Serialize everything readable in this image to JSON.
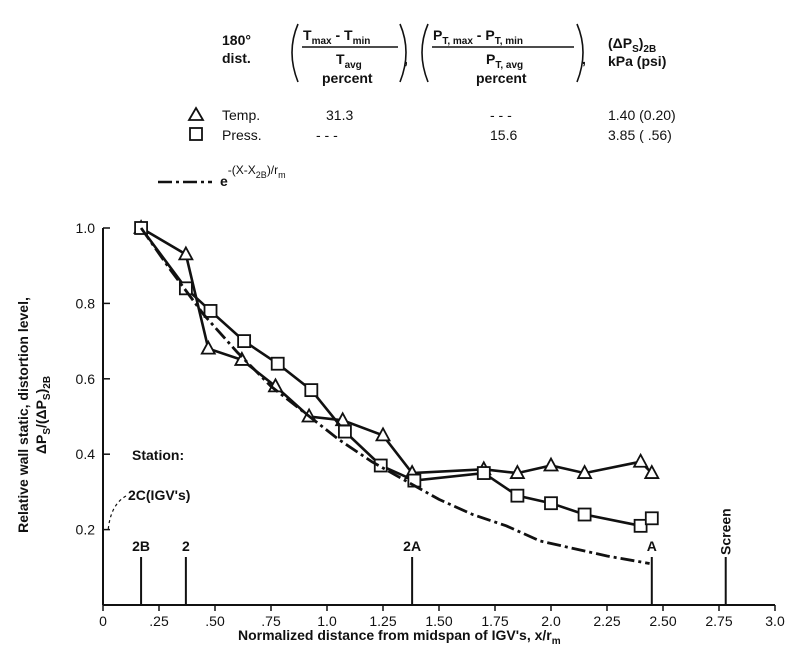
{
  "legend_table": {
    "col_headers": {
      "dist_line1": "180°",
      "dist_line2": "dist.",
      "temp_frac_num": "T",
      "temp_frac_num_sub_max": "max",
      "temp_frac_num_mid": " - T",
      "temp_frac_num_sub_min": "min",
      "temp_frac_den": "T",
      "temp_frac_den_sub": "avg",
      "press_frac_num": "P",
      "press_frac_num_sub_max": "T, max",
      "press_frac_num_mid": " - P",
      "press_frac_num_sub_min": "T, min",
      "press_frac_den": "P",
      "press_frac_den_sub": "T, avg",
      "percent_1": "percent",
      "percent_2": "percent",
      "dps_main": "(ΔP",
      "dps_sub_s": "S",
      "dps_close": ")",
      "dps_sub_2b": "2B",
      "dps_units": "kPa (psi)"
    },
    "rows": [
      {
        "symbol": "triangle",
        "label": "Temp.",
        "temp_pct": "31.3",
        "press_pct": "- - -",
        "dps": "1.40 (0.20)"
      },
      {
        "symbol": "square",
        "label": "Press.",
        "temp_pct": "- - -",
        "press_pct": "15.6",
        "dps": "3.85 ( .56)"
      }
    ],
    "curve_label": {
      "base": "e",
      "exp_a": "-(X-X",
      "exp_sub": "2B",
      "exp_b": ")/r",
      "exp_sub2": "m"
    }
  },
  "annotations": {
    "station_label": "Station:",
    "igv_label": "2C(IGV's)",
    "stations": [
      "2B",
      "2",
      "2A",
      "A",
      "Screen"
    ]
  },
  "axes": {
    "xlabel": "Normalized distance from midspan of IGV's, x/r",
    "xlabel_sub": "m",
    "ylabel_line1": "Relative wall static, distortion level,",
    "ylabel_line2_a": "ΔP",
    "ylabel_line2_sub1": "S",
    "ylabel_line2_b": "/(ΔP",
    "ylabel_line2_sub2": "S",
    "ylabel_line2_c": ")",
    "ylabel_line2_sub3": "2B",
    "x_ticks": [
      "0",
      ".25",
      ".50",
      ".75",
      "1.0",
      "1.25",
      "1.50",
      "1.75",
      "2.0",
      "2.25",
      "2.50",
      "2.75",
      "3.0"
    ],
    "y_ticks": [
      "0.2",
      "0.4",
      "0.6",
      "0.8",
      "1.0"
    ]
  },
  "chart_data": {
    "type": "line",
    "xlim": [
      0,
      3.0
    ],
    "ylim": [
      0,
      1.0
    ],
    "x_tick_values": [
      0,
      0.25,
      0.5,
      0.75,
      1.0,
      1.25,
      1.5,
      1.75,
      2.0,
      2.25,
      2.5,
      2.75,
      3.0
    ],
    "y_tick_values": [
      0.2,
      0.4,
      0.6,
      0.8,
      1.0
    ],
    "grid": false,
    "series": [
      {
        "name": "Temp.",
        "marker": "triangle",
        "x": [
          0.17,
          0.37,
          0.47,
          0.62,
          0.77,
          0.92,
          1.07,
          1.25,
          1.38,
          1.7,
          1.85,
          2.0,
          2.15,
          2.4,
          2.45
        ],
        "y": [
          1.0,
          0.93,
          0.68,
          0.65,
          0.58,
          0.5,
          0.49,
          0.45,
          0.35,
          0.36,
          0.35,
          0.37,
          0.35,
          0.38,
          0.35
        ]
      },
      {
        "name": "Press.",
        "marker": "square",
        "x": [
          0.17,
          0.37,
          0.48,
          0.63,
          0.78,
          0.93,
          1.08,
          1.24,
          1.39,
          1.7,
          1.85,
          2.0,
          2.15,
          2.4,
          2.45
        ],
        "y": [
          1.0,
          0.84,
          0.78,
          0.7,
          0.64,
          0.57,
          0.46,
          0.37,
          0.33,
          0.35,
          0.29,
          0.27,
          0.24,
          0.21,
          0.23
        ]
      },
      {
        "name": "e^-(X-X2B)/rm",
        "marker": "none",
        "style": "dash-dot",
        "x": [
          0.17,
          0.3,
          0.45,
          0.6,
          0.75,
          0.9,
          1.05,
          1.2,
          1.35,
          1.5,
          1.65,
          1.8,
          1.95,
          2.1,
          2.25,
          2.44
        ],
        "y": [
          1.0,
          0.89,
          0.77,
          0.67,
          0.58,
          0.51,
          0.44,
          0.38,
          0.33,
          0.28,
          0.24,
          0.21,
          0.17,
          0.15,
          0.13,
          0.11
        ]
      }
    ],
    "station_positions": [
      {
        "label": "2B",
        "x": 0.17
      },
      {
        "label": "2",
        "x": 0.37
      },
      {
        "label": "2A",
        "x": 1.38
      },
      {
        "label": "A",
        "x": 2.45
      },
      {
        "label": "Screen",
        "x": 2.78
      }
    ]
  }
}
